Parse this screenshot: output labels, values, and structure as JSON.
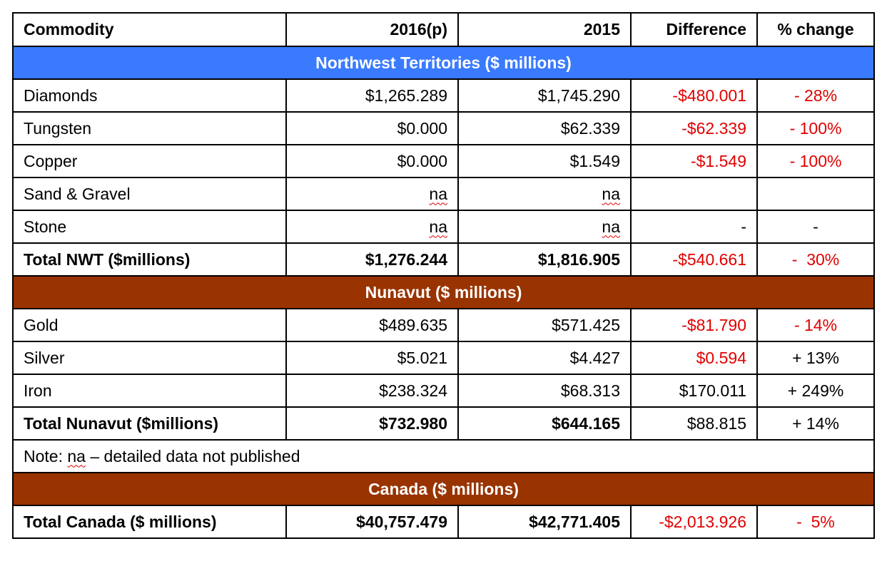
{
  "header": {
    "commodity": "Commodity",
    "y2016": "2016(p)",
    "y2015": "2015",
    "difference": "Difference",
    "pct": "% change"
  },
  "nwt": {
    "title": "Northwest Territories ($ millions)",
    "rows": [
      {
        "name": "Diamonds",
        "y2016": "$1,265.289",
        "y2015": "$1,745.290",
        "diff": "-$480.001",
        "pct": "- 28%"
      },
      {
        "name": "Tungsten",
        "y2016": "$0.000",
        "y2015": "$62.339",
        "diff": "-$62.339",
        "pct": "- 100%"
      },
      {
        "name": "Copper",
        "y2016": "$0.000",
        "y2015": "$1.549",
        "diff": "-$1.549",
        "pct": "- 100%"
      },
      {
        "name": "Sand & Gravel",
        "y2016": "na",
        "y2015": "na",
        "diff": "",
        "pct": ""
      },
      {
        "name": "Stone",
        "y2016": "na",
        "y2015": "na",
        "diff": "-",
        "pct": "-"
      }
    ],
    "total": {
      "name": "Total NWT ($millions)",
      "y2016": "$1,276.244",
      "y2015": "$1,816.905",
      "diff": "-$540.661",
      "pct": "-  30%"
    }
  },
  "nunavut": {
    "title": "Nunavut ($ millions)",
    "rows": [
      {
        "name": "Gold",
        "y2016": "$489.635",
        "y2015": "$571.425",
        "diff": "-$81.790",
        "pct": "- 14%"
      },
      {
        "name": "Silver",
        "y2016": "$5.021",
        "y2015": "$4.427",
        "diff": "$0.594",
        "pct": "+ 13%"
      },
      {
        "name": "Iron",
        "y2016": "$238.324",
        "y2015": "$68.313",
        "diff": "$170.011",
        "pct": "+ 249%"
      }
    ],
    "total": {
      "name": "Total Nunavut ($millions)",
      "y2016": "$732.980",
      "y2015": "$644.165",
      "diff": "$88.815",
      "pct": "+ 14%"
    }
  },
  "note": {
    "prefix": "Note: ",
    "abbr": "na",
    "rest": " – detailed data not published"
  },
  "canada": {
    "title": "Canada ($ millions)",
    "total": {
      "name": "Total Canada ($ millions)",
      "y2016": "$40,757.479",
      "y2015": "$42,771.405",
      "diff": "-$2,013.926",
      "pct": "-  5%"
    }
  },
  "colors": {
    "nwt_band": "#3a7aff",
    "brown_band": "#993300",
    "negative_text": "#e00000"
  }
}
